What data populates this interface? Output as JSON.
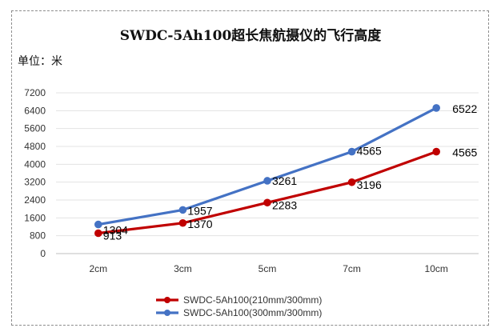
{
  "chart_data": {
    "type": "line",
    "title": "SWDC-5Ah100超长焦航摄仪的飞行高度",
    "ylabel": "单位：米",
    "xlabel": "",
    "categories": [
      "2cm",
      "3cm",
      "5cm",
      "7cm",
      "10cm"
    ],
    "yticks": [
      0,
      800,
      1600,
      2400,
      3200,
      4000,
      4800,
      5600,
      6400,
      7200
    ],
    "ylim": [
      0,
      7200
    ],
    "grid": true,
    "legend_position": "bottom",
    "series": [
      {
        "name": "SWDC-5Ah100(210mm/300mm)",
        "color": "#c00000",
        "values": [
          913,
          1370,
          2283,
          3196,
          4565
        ]
      },
      {
        "name": "SWDC-5Ah100(300mm/300mm)",
        "color": "#4472c4",
        "values": [
          1304,
          1957,
          3261,
          4565,
          6522
        ]
      }
    ]
  }
}
